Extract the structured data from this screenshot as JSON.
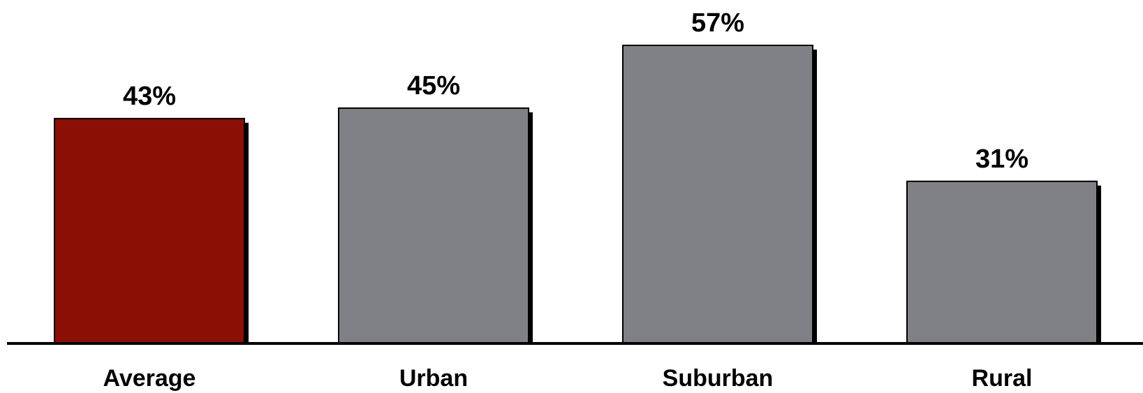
{
  "chart_data": {
    "type": "bar",
    "categories": [
      "Average",
      "Urban",
      "Suburban",
      "Rural"
    ],
    "values": [
      43,
      45,
      57,
      31
    ],
    "data_labels": [
      "43%",
      "45%",
      "57%",
      "31%"
    ],
    "unit": "%",
    "ylim": [
      0,
      57
    ],
    "grid": false,
    "legend": "none",
    "title": "",
    "xlabel": "",
    "ylabel": "",
    "colors": [
      "#8B0F05",
      "#808186",
      "#808186",
      "#808186"
    ],
    "shadow_color": "#000000",
    "axis_color": "#000000"
  }
}
